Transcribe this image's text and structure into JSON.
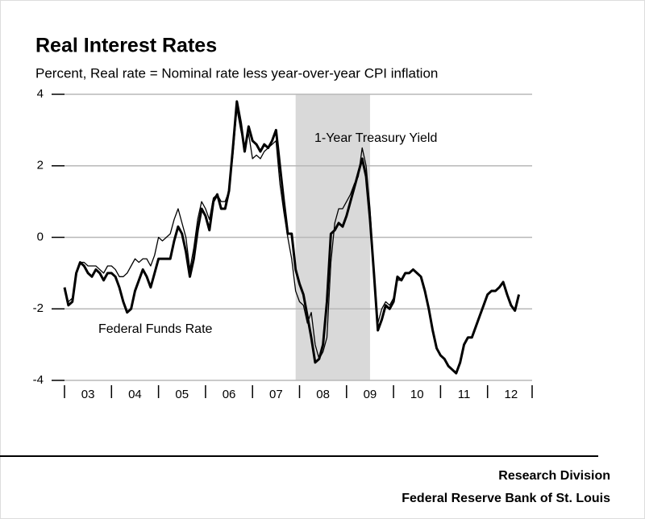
{
  "chart_data": {
    "type": "line",
    "title": "Real Interest Rates",
    "subtitle": "Percent, Real rate = Nominal rate less year-over-year CPI inflation",
    "annotations": [
      "1-Year Treasury Yield",
      "Federal Funds Rate"
    ],
    "footer": [
      "Research Division",
      "Federal Reserve Bank of St. Louis"
    ],
    "xlim": [
      2003,
      2013
    ],
    "xticks": [
      {
        "value": 2003,
        "label": "03"
      },
      {
        "value": 2004,
        "label": "04"
      },
      {
        "value": 2005,
        "label": "05"
      },
      {
        "value": 2006,
        "label": "06"
      },
      {
        "value": 2007,
        "label": "07"
      },
      {
        "value": 2008,
        "label": "08"
      },
      {
        "value": 2009,
        "label": "09"
      },
      {
        "value": 2010,
        "label": "10"
      },
      {
        "value": 2011,
        "label": "11"
      },
      {
        "value": 2012,
        "label": "12"
      }
    ],
    "ylim": [
      -4,
      4
    ],
    "yticks": [
      -4,
      -2,
      0,
      2,
      4
    ],
    "grid": true,
    "recession": [
      2007.917,
      2009.5
    ],
    "x": [
      2003,
      2003.083,
      2003.167,
      2003.25,
      2003.333,
      2003.417,
      2003.5,
      2003.583,
      2003.667,
      2003.75,
      2003.833,
      2003.917,
      2004,
      2004.083,
      2004.167,
      2004.25,
      2004.333,
      2004.417,
      2004.5,
      2004.583,
      2004.667,
      2004.75,
      2004.833,
      2004.917,
      2005,
      2005.083,
      2005.167,
      2005.25,
      2005.333,
      2005.417,
      2005.5,
      2005.583,
      2005.667,
      2005.75,
      2005.833,
      2005.917,
      2006,
      2006.083,
      2006.167,
      2006.25,
      2006.333,
      2006.417,
      2006.5,
      2006.583,
      2006.667,
      2006.75,
      2006.833,
      2006.917,
      2007,
      2007.083,
      2007.167,
      2007.25,
      2007.333,
      2007.417,
      2007.5,
      2007.583,
      2007.667,
      2007.75,
      2007.833,
      2007.917,
      2008,
      2008.083,
      2008.167,
      2008.25,
      2008.333,
      2008.417,
      2008.5,
      2008.583,
      2008.667,
      2008.75,
      2008.833,
      2008.917,
      2009,
      2009.083,
      2009.167,
      2009.25,
      2009.333,
      2009.417,
      2009.5,
      2009.583,
      2009.667,
      2009.75,
      2009.833,
      2009.917,
      2010,
      2010.083,
      2010.167,
      2010.25,
      2010.333,
      2010.417,
      2010.5,
      2010.583,
      2010.667,
      2010.75,
      2010.833,
      2010.917,
      2011,
      2011.083,
      2011.167,
      2011.25,
      2011.333,
      2011.417,
      2011.5,
      2011.583,
      2011.667,
      2011.75,
      2011.833,
      2011.917,
      2012,
      2012.083,
      2012.167,
      2012.25,
      2012.333,
      2012.417,
      2012.5,
      2012.583,
      2012.667
    ],
    "series": [
      {
        "name": "Federal Funds Rate",
        "color": "#000000",
        "width": 3,
        "values": [
          -1.4,
          -1.9,
          -1.8,
          -1.0,
          -0.7,
          -0.8,
          -1.0,
          -1.1,
          -0.9,
          -1.0,
          -1.2,
          -1.0,
          -1.0,
          -1.1,
          -1.4,
          -1.8,
          -2.1,
          -2.0,
          -1.5,
          -1.2,
          -0.9,
          -1.1,
          -1.4,
          -1.0,
          -0.6,
          -0.6,
          -0.6,
          -0.6,
          -0.1,
          0.3,
          0.1,
          -0.4,
          -1.1,
          -0.6,
          0.2,
          0.8,
          0.6,
          0.2,
          1.0,
          1.2,
          0.8,
          0.8,
          1.3,
          2.5,
          3.8,
          3.2,
          2.4,
          3.1,
          2.7,
          2.6,
          2.4,
          2.6,
          2.5,
          2.7,
          3.0,
          2.0,
          1.0,
          0.1,
          0.1,
          -0.9,
          -1.3,
          -1.6,
          -2.2,
          -2.8,
          -3.5,
          -3.4,
          -3.0,
          -1.8,
          0.1,
          0.2,
          0.4,
          0.3,
          0.6,
          1.0,
          1.4,
          1.8,
          2.2,
          1.7,
          0.5,
          -1.0,
          -2.6,
          -2.3,
          -1.9,
          -2.0,
          -1.8,
          -1.1,
          -1.2,
          -1.0,
          -1.0,
          -0.9,
          -1.0,
          -1.1,
          -1.5,
          -2.0,
          -2.6,
          -3.1,
          -3.3,
          -3.4,
          -3.6,
          -3.7,
          -3.8,
          -3.5,
          -3.0,
          -2.8,
          -2.8,
          -2.5,
          -2.2,
          -1.9,
          -1.6,
          -1.5,
          -1.5,
          -1.4,
          -1.25,
          -1.6,
          -1.9,
          -2.05,
          -1.6
        ]
      },
      {
        "name": "1-Year Treasury Yield",
        "color": "#000000",
        "width": 1.3,
        "values": [
          -1.5,
          -1.8,
          -1.7,
          -1.0,
          -0.7,
          -0.7,
          -0.8,
          -0.8,
          -0.8,
          -0.9,
          -1.0,
          -0.8,
          -0.8,
          -0.9,
          -1.1,
          -1.1,
          -1.0,
          -0.8,
          -0.6,
          -0.7,
          -0.6,
          -0.6,
          -0.8,
          -0.5,
          0.0,
          -0.1,
          0.0,
          0.1,
          0.5,
          0.8,
          0.4,
          0.0,
          -0.9,
          -0.3,
          0.5,
          1.0,
          0.8,
          0.5,
          1.1,
          1.2,
          1.0,
          1.0,
          1.3,
          2.3,
          3.6,
          3.0,
          2.5,
          2.9,
          2.2,
          2.3,
          2.2,
          2.4,
          2.5,
          2.6,
          2.7,
          1.5,
          0.7,
          0.0,
          -0.6,
          -1.5,
          -1.8,
          -1.9,
          -2.4,
          -2.1,
          -3.0,
          -3.4,
          -3.2,
          -2.8,
          -0.7,
          0.4,
          0.8,
          0.8,
          1.0,
          1.2,
          1.5,
          1.7,
          2.5,
          2.0,
          0.8,
          -1.0,
          -2.4,
          -2.0,
          -1.8,
          -1.9,
          -1.7,
          -1.2,
          -1.2,
          -1.0,
          -1.0,
          -0.9,
          -1.0,
          -1.1,
          -1.5,
          -2.0,
          -2.6,
          -3.1,
          -3.3,
          -3.4,
          -3.6,
          -3.7,
          -3.8,
          -3.5,
          -3.0,
          -2.8,
          -2.8,
          -2.5,
          -2.2,
          -1.9,
          -1.6,
          -1.5,
          -1.5,
          -1.4,
          -1.25,
          -1.6,
          -1.9,
          -2.05,
          -1.6
        ]
      }
    ]
  }
}
